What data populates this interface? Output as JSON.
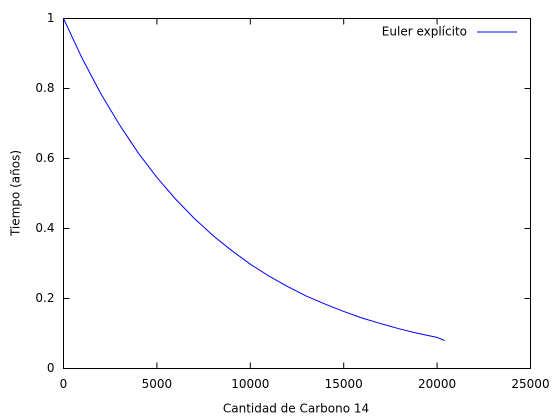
{
  "chart_data": {
    "type": "line",
    "x_label": "Cantidad de Carbono 14",
    "y_label": "Tiempo (años)",
    "x": [
      0,
      1000,
      2000,
      3000,
      4000,
      5000,
      6000,
      7000,
      8000,
      9000,
      10000,
      11000,
      12000,
      13000,
      14000,
      15000,
      16000,
      17000,
      18000,
      19000,
      20000,
      20400
    ],
    "series": [
      {
        "name": "Euler explícito",
        "color": "#0000ff",
        "values": [
          1,
          0.886,
          0.785,
          0.696,
          0.616,
          0.546,
          0.484,
          0.429,
          0.38,
          0.337,
          0.298,
          0.264,
          0.234,
          0.207,
          0.184,
          0.163,
          0.144,
          0.128,
          0.113,
          0.1,
          0.089,
          0.08
        ]
      }
    ],
    "xlim": [
      0,
      25000
    ],
    "xticks": [
      0,
      5000,
      10000,
      15000,
      20000,
      25000
    ],
    "ylim": [
      0,
      1
    ],
    "yticks": [
      0,
      0.2,
      0.4,
      0.6,
      0.8,
      1
    ],
    "grid": false,
    "legend": "top-right"
  }
}
